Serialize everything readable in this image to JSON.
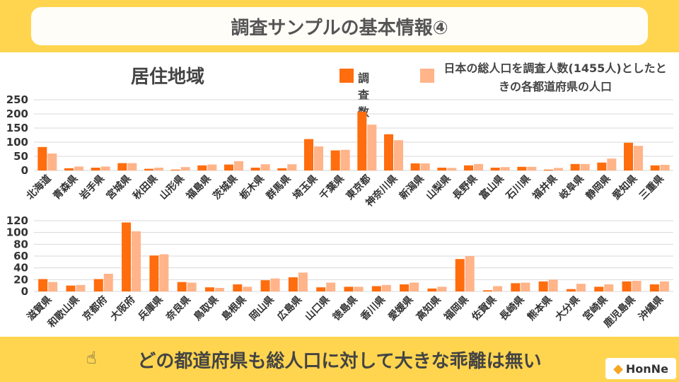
{
  "header": {
    "title": "調査サンプルの基本情報④"
  },
  "section_title": "居住地域",
  "footer": {
    "text": "どの都道府県も総人口に対して大きな乖離は無い"
  },
  "logo": {
    "text": "HonNe"
  },
  "colors": {
    "survey": "#ff6d0e",
    "population": "#ffb48a",
    "accent": "#ffd54f"
  },
  "icons": {
    "footer": "pointing-hand-icon",
    "logo": "honne-logo-icon"
  },
  "chart_data": [
    {
      "type": "bar",
      "title": "",
      "xlabel": "",
      "ylabel": "",
      "ylim": [
        0,
        250
      ],
      "yticks": [
        0,
        50,
        100,
        150,
        200,
        250
      ],
      "grid": true,
      "legend": "top-right",
      "categories": [
        "北海道",
        "青森県",
        "岩手県",
        "宮城県",
        "秋田県",
        "山形県",
        "福島県",
        "茨城県",
        "栃木県",
        "群馬県",
        "埼玉県",
        "千葉県",
        "東京都",
        "神奈川県",
        "新潟県",
        "山梨県",
        "長野県",
        "富山県",
        "石川県",
        "福井県",
        "岐阜県",
        "静岡県",
        "愛知県",
        "三重県"
      ],
      "series": [
        {
          "name": "調査数",
          "values": [
            83,
            8,
            10,
            26,
            6,
            3,
            18,
            21,
            10,
            8,
            111,
            71,
            208,
            128,
            25,
            10,
            18,
            10,
            13,
            3,
            23,
            28,
            98,
            18
          ]
        },
        {
          "name": "日本の総人口を調査人数(1455人)としたときの各都道府県の人口",
          "values": [
            60,
            14,
            14,
            26,
            10,
            12,
            21,
            33,
            22,
            22,
            85,
            73,
            162,
            107,
            25,
            9,
            23,
            12,
            13,
            9,
            23,
            42,
            87,
            20
          ]
        }
      ]
    },
    {
      "type": "bar",
      "title": "",
      "xlabel": "",
      "ylabel": "",
      "ylim": [
        0,
        120
      ],
      "yticks": [
        0,
        20,
        40,
        60,
        80,
        100,
        120
      ],
      "grid": true,
      "categories": [
        "滋賀県",
        "和歌山県",
        "京都府",
        "大阪府",
        "兵庫県",
        "奈良県",
        "鳥取県",
        "島根県",
        "岡山県",
        "広島県",
        "山口県",
        "徳島県",
        "香川県",
        "愛媛県",
        "高知県",
        "福岡県",
        "佐賀県",
        "長崎県",
        "熊本県",
        "大分県",
        "宮崎県",
        "鹿児島県",
        "沖縄県"
      ],
      "series": [
        {
          "name": "調査数",
          "values": [
            21,
            10,
            21,
            117,
            61,
            16,
            7,
            12,
            19,
            24,
            7,
            8,
            9,
            12,
            5,
            55,
            2,
            14,
            17,
            4,
            8,
            17,
            12
          ]
        },
        {
          "name": "日本の総人口を調査人数(1455人)としたときの各都道府県の人口",
          "values": [
            16,
            11,
            30,
            102,
            63,
            15,
            6,
            8,
            22,
            32,
            15,
            8,
            11,
            15,
            8,
            60,
            9,
            15,
            20,
            13,
            12,
            18,
            17
          ]
        }
      ]
    }
  ]
}
